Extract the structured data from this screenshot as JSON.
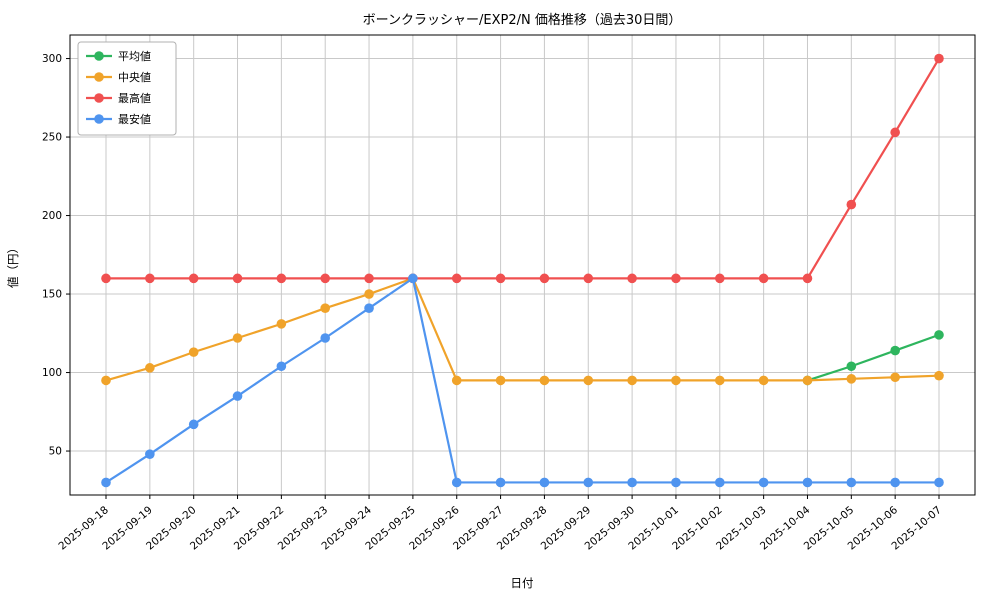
{
  "chart_data": {
    "type": "line",
    "title": "ボーンクラッシャー/EXP2/N 価格推移（過去30日間）",
    "xlabel": "日付",
    "ylabel": "値（円）",
    "x": [
      "2025-09-18",
      "2025-09-19",
      "2025-09-20",
      "2025-09-21",
      "2025-09-22",
      "2025-09-23",
      "2025-09-24",
      "2025-09-25",
      "2025-09-26",
      "2025-09-27",
      "2025-09-28",
      "2025-09-29",
      "2025-09-30",
      "2025-10-01",
      "2025-10-02",
      "2025-10-03",
      "2025-10-04",
      "2025-10-05",
      "2025-10-06",
      "2025-10-07"
    ],
    "series": [
      {
        "key": "average",
        "name": "平均値",
        "color": "#2eb55e",
        "values": [
          null,
          null,
          null,
          null,
          null,
          null,
          null,
          null,
          null,
          null,
          null,
          null,
          null,
          null,
          null,
          null,
          95,
          104,
          114,
          124
        ]
      },
      {
        "key": "median",
        "name": "中央値",
        "color": "#f0a32a",
        "values": [
          95,
          103,
          113,
          122,
          131,
          141,
          150,
          160,
          95,
          95,
          95,
          95,
          95,
          95,
          95,
          95,
          95,
          96,
          97,
          98
        ]
      },
      {
        "key": "max",
        "name": "最高値",
        "color": "#f05050",
        "values": [
          160,
          160,
          160,
          160,
          160,
          160,
          160,
          160,
          160,
          160,
          160,
          160,
          160,
          160,
          160,
          160,
          160,
          207,
          253,
          300
        ]
      },
      {
        "key": "min",
        "name": "最安値",
        "color": "#4f94ef",
        "values": [
          30,
          48,
          67,
          85,
          104,
          122,
          141,
          160,
          30,
          30,
          30,
          30,
          30,
          30,
          30,
          30,
          30,
          30,
          30,
          30
        ]
      }
    ],
    "ylim": [
      22,
      315
    ],
    "yticks": [
      50,
      100,
      150,
      200,
      250,
      300
    ],
    "grid": true,
    "legend_position": "upper left"
  }
}
